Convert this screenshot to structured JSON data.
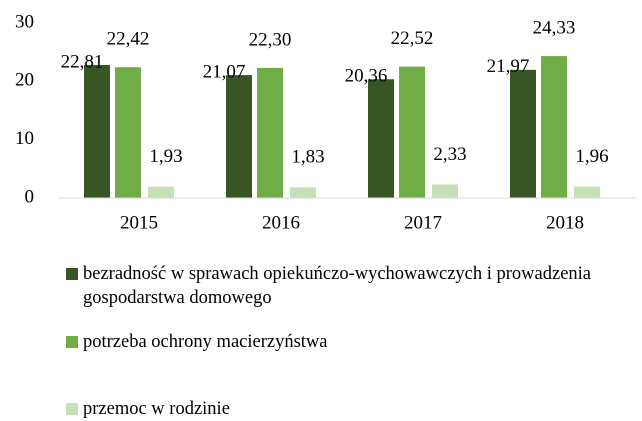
{
  "chart_data": {
    "type": "bar",
    "categories": [
      "2015",
      "2016",
      "2017",
      "2018"
    ],
    "series": [
      {
        "name": "bezradność w sprawach opiekuńczo-wychowawczych i prowadzenia gospodarstwa domowego",
        "color": "#375623",
        "values": [
          22.81,
          21.07,
          20.36,
          21.97
        ],
        "value_labels": [
          "22,81",
          "21,07",
          "20,36",
          "21,97"
        ]
      },
      {
        "name": "potrzeba ochrony macierzyństwa",
        "color": "#70ad47",
        "values": [
          22.42,
          22.3,
          22.52,
          24.33
        ],
        "value_labels": [
          "22,42",
          "22,30",
          "22,52",
          "24,33"
        ]
      },
      {
        "name": "przemoc w rodzinie",
        "color": "#c5e0b4",
        "values": [
          1.93,
          1.83,
          2.33,
          1.96
        ],
        "value_labels": [
          "1,93",
          "1,83",
          "2,33",
          "1,96"
        ]
      }
    ],
    "ylim": [
      0,
      30
    ],
    "yticks": [
      0,
      10,
      20,
      30
    ],
    "grid": false,
    "legend": "bottom"
  }
}
